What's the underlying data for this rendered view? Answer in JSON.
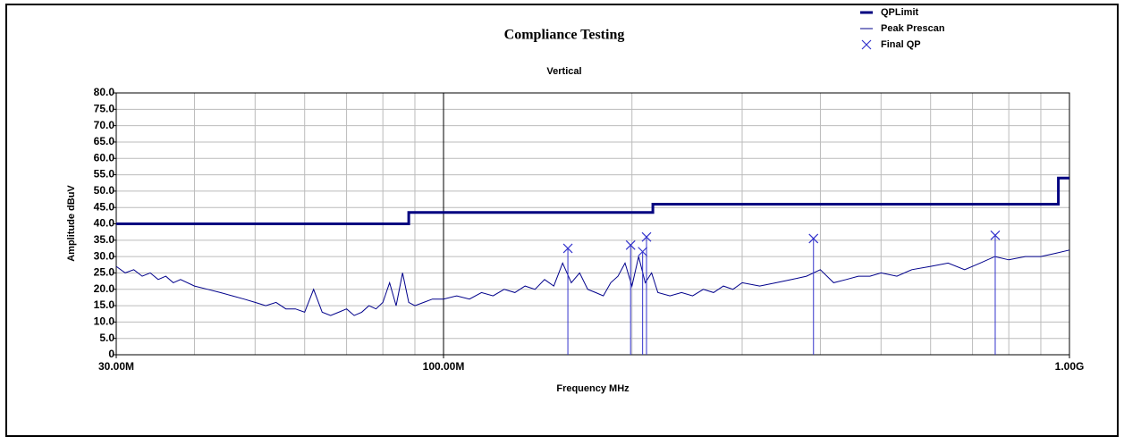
{
  "chart_data": {
    "type": "line",
    "title": "Compliance Testing",
    "subtitle": "Vertical",
    "x_label": "Frequency MHz",
    "y_label": "Amplitude dBuV",
    "xscale": "log",
    "xlim": [
      30,
      1000
    ],
    "xticks": [
      {
        "value": 30,
        "label": "30.00M"
      },
      {
        "value": 100,
        "label": "100.00M"
      },
      {
        "value": 1000,
        "label": "1.00G"
      }
    ],
    "xgrid": [
      40,
      50,
      60,
      70,
      80,
      90,
      200,
      300,
      400,
      500,
      600,
      700,
      800,
      900
    ],
    "ylim": [
      0,
      80
    ],
    "yticks": [
      0,
      {
        "value": 5,
        "label": "5.0"
      },
      {
        "value": 10,
        "label": "10.0"
      },
      {
        "value": 15,
        "label": "15.0"
      },
      {
        "value": 20,
        "label": "20.0"
      },
      {
        "value": 25,
        "label": "25.0"
      },
      {
        "value": 30,
        "label": "30.0"
      },
      {
        "value": 35,
        "label": "35.0"
      },
      {
        "value": 40,
        "label": "40.0"
      },
      {
        "value": 45,
        "label": "45.0"
      },
      {
        "value": 50,
        "label": "50.0"
      },
      {
        "value": 55,
        "label": "55.0"
      },
      {
        "value": 60,
        "label": "60.0"
      },
      {
        "value": 65,
        "label": "65.0"
      },
      {
        "value": 70,
        "label": "70.0"
      },
      {
        "value": 75,
        "label": "75.0"
      },
      {
        "value": 80,
        "label": "80.0"
      }
    ],
    "grid": true,
    "legend": "top-right",
    "series": [
      {
        "name": "QPLimit",
        "color": "#000080",
        "style": "line",
        "width": 3,
        "x": [
          30,
          88,
          88,
          216,
          216,
          960,
          960,
          1000
        ],
        "values": [
          40,
          40,
          43.5,
          43.5,
          46,
          46,
          54,
          54
        ]
      },
      {
        "name": "Peak Prescan",
        "color": "#00008b",
        "style": "line",
        "width": 1,
        "x": [
          30,
          31,
          32,
          33,
          34,
          35,
          36,
          37,
          38,
          40,
          42,
          44,
          46,
          48,
          50,
          52,
          54,
          56,
          58,
          60,
          62,
          64,
          66,
          68,
          70,
          72,
          74,
          76,
          78,
          80,
          82,
          84,
          86,
          88,
          90,
          93,
          96,
          100,
          105,
          110,
          115,
          120,
          125,
          130,
          135,
          140,
          145,
          150,
          155,
          160,
          165,
          170,
          175,
          180,
          185,
          190,
          195,
          200,
          205,
          210,
          215,
          220,
          230,
          240,
          250,
          260,
          270,
          280,
          290,
          300,
          320,
          340,
          360,
          380,
          400,
          420,
          440,
          460,
          480,
          500,
          530,
          560,
          600,
          640,
          680,
          720,
          760,
          800,
          850,
          900,
          950,
          1000
        ],
        "values": [
          27,
          25,
          26,
          24,
          25,
          23,
          24,
          22,
          23,
          21,
          20,
          19,
          18,
          17,
          16,
          15,
          16,
          14,
          14,
          13,
          20,
          13,
          12,
          13,
          14,
          12,
          13,
          15,
          14,
          16,
          22,
          15,
          25,
          16,
          15,
          16,
          17,
          17,
          18,
          17,
          19,
          18,
          20,
          19,
          21,
          20,
          23,
          21,
          28,
          22,
          25,
          20,
          19,
          18,
          22,
          24,
          28,
          21,
          30,
          22,
          25,
          19,
          18,
          19,
          18,
          20,
          19,
          21,
          20,
          22,
          21,
          22,
          23,
          24,
          26,
          22,
          23,
          24,
          24,
          25,
          24,
          26,
          27,
          28,
          26,
          28,
          30,
          29,
          30,
          30,
          31,
          32
        ]
      },
      {
        "name": "Final QP",
        "color": "#3333cc",
        "style": "marker",
        "x": [
          158,
          199,
          208,
          211,
          390,
          761
        ],
        "values": [
          32.5,
          33.5,
          31.5,
          36,
          35.5,
          36.5
        ]
      }
    ]
  }
}
